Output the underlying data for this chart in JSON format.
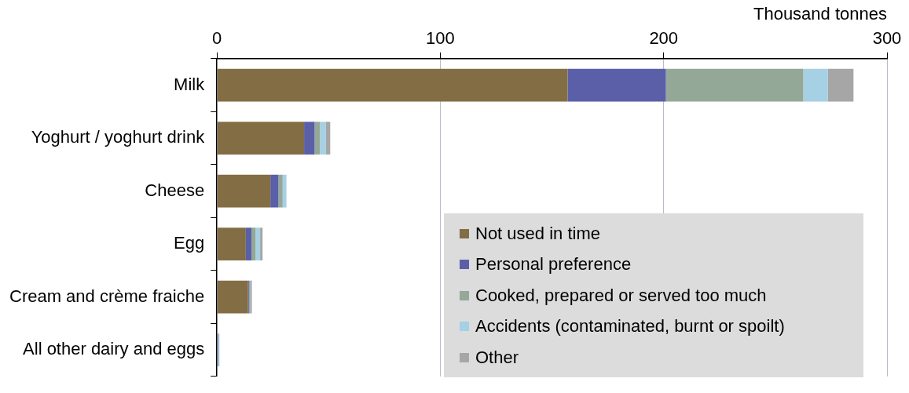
{
  "chart_data": {
    "type": "bar",
    "orientation": "horizontal",
    "stacked": true,
    "xlabel": "Thousand tonnes",
    "categories": [
      "Milk",
      "Yoghurt / yoghurt drink",
      "Cheese",
      "Egg",
      "Cream and crème fraiche",
      "All other dairy and eggs"
    ],
    "series": [
      {
        "name": "Not used in time",
        "color": "#836d45",
        "values": [
          157,
          39,
          23.9,
          12.9,
          13.9,
          0.3
        ]
      },
      {
        "name": "Personal preference",
        "color": "#5a5fa8",
        "values": [
          44,
          4.7,
          3.6,
          2.5,
          0.4,
          0.2
        ]
      },
      {
        "name": "Cooked, prepared or served too much",
        "color": "#94a898",
        "values": [
          61.5,
          2.4,
          1.9,
          1.9,
          0.6,
          null
        ]
      },
      {
        "name": "Accidents (contaminated, burnt or spoilt)",
        "color": "#a6d0e3",
        "values": [
          11,
          2.7,
          1.7,
          2,
          null,
          0.6
        ]
      },
      {
        "name": "Other",
        "color": "#a6a6a6",
        "values": [
          11.5,
          1.9,
          null,
          1.1,
          0.7,
          null
        ]
      }
    ],
    "xlim": [
      0,
      300
    ],
    "xticks": [
      0,
      100,
      200,
      300
    ],
    "grid": "x",
    "legend": "bottom right"
  }
}
